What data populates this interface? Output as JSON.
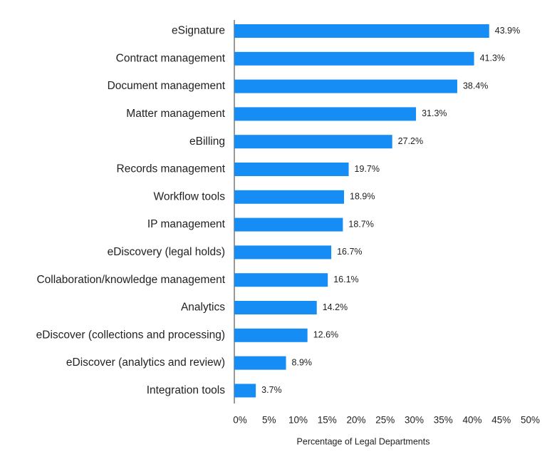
{
  "chart_data": {
    "type": "bar",
    "orientation": "horizontal",
    "categories": [
      "eSignature",
      "Contract management",
      "Document management",
      "Matter management",
      "eBilling",
      "Records management",
      "Workflow tools",
      "IP management",
      "eDiscovery (legal holds)",
      "Collaboration/knowledge management",
      "Analytics",
      "eDiscover (collections and processing)",
      "eDiscover (analytics and review)",
      "Integration tools"
    ],
    "values": [
      43.9,
      41.3,
      38.4,
      31.3,
      27.2,
      19.7,
      18.9,
      18.7,
      16.7,
      16.1,
      14.2,
      12.6,
      8.9,
      3.7
    ],
    "value_labels": [
      "43.9%",
      "41.3%",
      "38.4%",
      "31.3%",
      "27.2%",
      "19.7%",
      "18.9%",
      "18.7%",
      "16.7%",
      "16.1%",
      "14.2%",
      "12.6%",
      "8.9%",
      "3.7%"
    ],
    "color": "#168cf5",
    "xlim": [
      0,
      50
    ],
    "xticks": [
      {
        "value": 0,
        "label": "0%"
      },
      {
        "value": 5,
        "label": "5%"
      },
      {
        "value": 10,
        "label": "10%"
      },
      {
        "value": 15,
        "label": "15%"
      },
      {
        "value": 20,
        "label": "20%"
      },
      {
        "value": 25,
        "label": "25%"
      },
      {
        "value": 30,
        "label": "30%"
      },
      {
        "value": 35,
        "label": "35%"
      },
      {
        "value": 40,
        "label": "40%"
      },
      {
        "value": 45,
        "label": "45%"
      },
      {
        "value": 50,
        "label": "50%"
      }
    ],
    "xlabel": "Percentage of Legal Departments",
    "grid": false
  }
}
